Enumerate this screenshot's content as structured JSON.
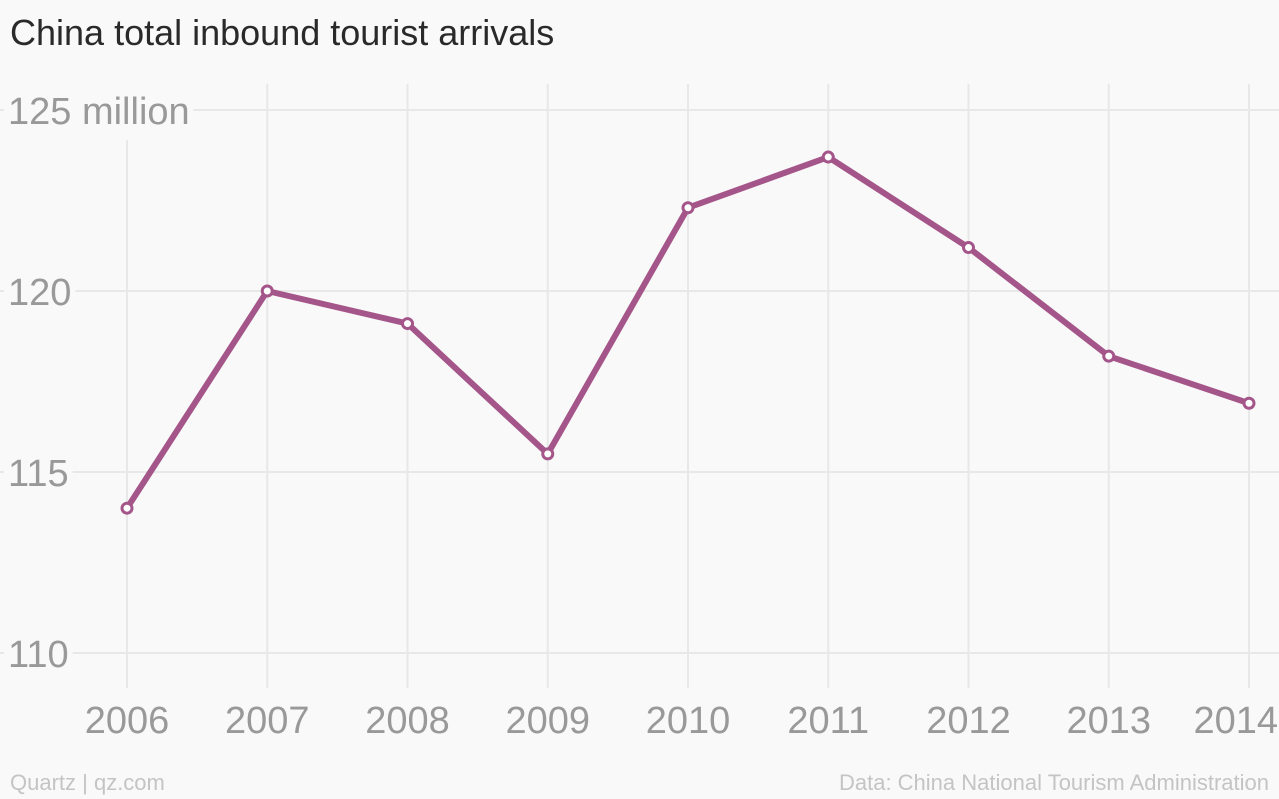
{
  "chart_data": {
    "type": "line",
    "title": "China total inbound tourist arrivals",
    "x": [
      "2006",
      "2007",
      "2008",
      "2009",
      "2010",
      "2011",
      "2012",
      "2013",
      "2014"
    ],
    "series": [
      {
        "values": [
          114.0,
          120.0,
          119.1,
          115.5,
          122.3,
          123.7,
          121.2,
          118.2,
          116.9
        ]
      }
    ],
    "y_ticks": [
      110,
      115,
      120,
      125
    ],
    "y_tick_labels": [
      "110",
      "115",
      "120",
      "125 million"
    ],
    "ylim": [
      110,
      125
    ],
    "xlabel": "",
    "ylabel": "",
    "grid": true,
    "legend": "none",
    "colors": {
      "line": "#a45589",
      "grid": "#e8e8e8",
      "tick_text": "#999999"
    }
  },
  "footer": {
    "left": "Quartz | qz.com",
    "right": "Data: China National Tourism Administration"
  }
}
